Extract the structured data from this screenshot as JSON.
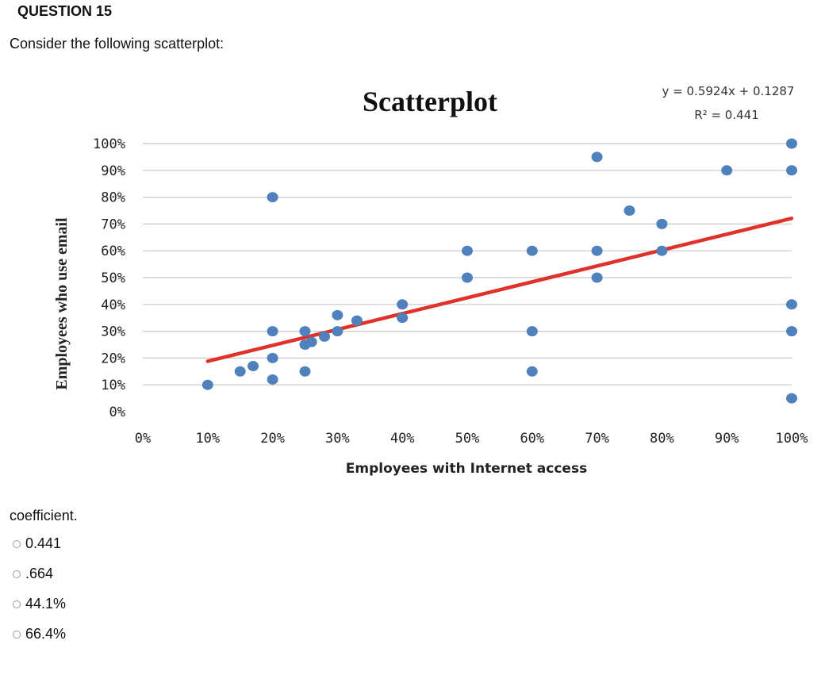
{
  "question": {
    "title": "QUESTION 15",
    "prompt": "Consider the following scatterplot:",
    "fragment": "coefficient."
  },
  "options": [
    {
      "label": "0.441"
    },
    {
      "label": ".664"
    },
    {
      "label": "44.1%"
    },
    {
      "label": "66.4%"
    }
  ],
  "chart_data": {
    "type": "scatter",
    "title": "Scatterplot",
    "xlabel": "Employees with Internet access",
    "ylabel": "Employees who use email",
    "xlim": [
      0,
      100
    ],
    "ylim": [
      0,
      100
    ],
    "x_ticks": [
      "0%",
      "10%",
      "20%",
      "30%",
      "40%",
      "50%",
      "60%",
      "70%",
      "80%",
      "90%",
      "100%"
    ],
    "y_ticks": [
      "0%",
      "10%",
      "20%",
      "30%",
      "40%",
      "50%",
      "60%",
      "70%",
      "80%",
      "90%",
      "100%"
    ],
    "grid": "horizontal",
    "trendline": {
      "equation": "y = 0.5924x + 0.1287",
      "r_squared_label": "R² = 0.441",
      "slope": 0.5924,
      "intercept": 0.1287,
      "x_range": [
        10,
        100
      ]
    },
    "series": [
      {
        "color": "#4f81bd",
        "points": [
          [
            10,
            10
          ],
          [
            15,
            15
          ],
          [
            17,
            17
          ],
          [
            20,
            80
          ],
          [
            20,
            30
          ],
          [
            20,
            20
          ],
          [
            20,
            12
          ],
          [
            25,
            30
          ],
          [
            25,
            25
          ],
          [
            25,
            15
          ],
          [
            26,
            26
          ],
          [
            28,
            28
          ],
          [
            30,
            36
          ],
          [
            30,
            30
          ],
          [
            33,
            34
          ],
          [
            40,
            40
          ],
          [
            40,
            35
          ],
          [
            50,
            60
          ],
          [
            50,
            50
          ],
          [
            60,
            60
          ],
          [
            60,
            30
          ],
          [
            60,
            15
          ],
          [
            70,
            95
          ],
          [
            70,
            60
          ],
          [
            70,
            50
          ],
          [
            75,
            75
          ],
          [
            80,
            70
          ],
          [
            80,
            60
          ],
          [
            90,
            90
          ],
          [
            100,
            100
          ],
          [
            100,
            90
          ],
          [
            100,
            40
          ],
          [
            100,
            30
          ],
          [
            100,
            5
          ]
        ]
      }
    ],
    "colors": {
      "points": "#4f81bd",
      "trendline": "#e0322b",
      "grid": "#c8c8c8"
    }
  }
}
